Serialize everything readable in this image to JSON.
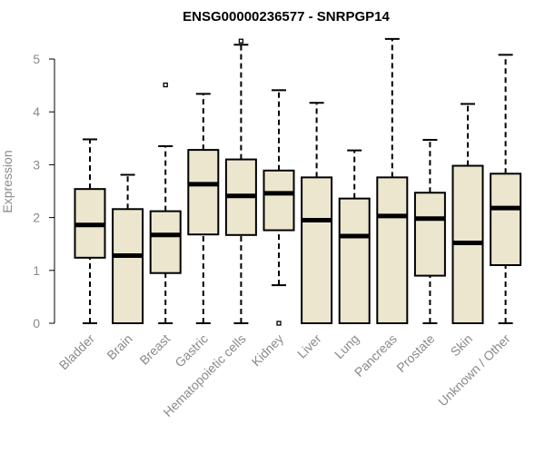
{
  "chart_data": {
    "type": "boxplot",
    "title": "ENSG00000236577 - SNRPGP14",
    "xlabel": "",
    "ylabel": "Expression",
    "ylim": [
      0,
      5.4
    ],
    "yticks": [
      0,
      1,
      2,
      3,
      4,
      5
    ],
    "box_color": "#ede6cf",
    "categories": [
      "Bladder",
      "Brain",
      "Breast",
      "Gastric",
      "Hematopoietic cells",
      "Kidney",
      "Liver",
      "Lung",
      "Pancreas",
      "Prostate",
      "Skin",
      "Unknown / Other"
    ],
    "series": [
      {
        "name": "Bladder",
        "min": 0,
        "q1": 1.24,
        "median": 1.86,
        "q3": 2.54,
        "max": 3.48,
        "outliers": []
      },
      {
        "name": "Brain",
        "min": 0,
        "q1": 0,
        "median": 1.28,
        "q3": 2.16,
        "max": 2.81,
        "outliers": []
      },
      {
        "name": "Breast",
        "min": 0,
        "q1": 0.95,
        "median": 1.67,
        "q3": 2.12,
        "max": 3.35,
        "outliers": [
          4.51
        ]
      },
      {
        "name": "Gastric",
        "min": 0,
        "q1": 1.68,
        "median": 2.63,
        "q3": 3.28,
        "max": 4.34,
        "outliers": []
      },
      {
        "name": "Hematopoietic cells",
        "min": 0,
        "q1": 1.67,
        "median": 2.41,
        "q3": 3.1,
        "max": 5.27,
        "outliers": [
          5.34
        ]
      },
      {
        "name": "Kidney",
        "min": 0.72,
        "q1": 1.76,
        "median": 2.46,
        "q3": 2.89,
        "max": 4.41,
        "outliers": [
          0
        ]
      },
      {
        "name": "Liver",
        "min": 0,
        "q1": 0,
        "median": 1.95,
        "q3": 2.76,
        "max": 4.17,
        "outliers": []
      },
      {
        "name": "Lung",
        "min": 0,
        "q1": 0,
        "median": 1.65,
        "q3": 2.36,
        "max": 3.27,
        "outliers": []
      },
      {
        "name": "Pancreas",
        "min": 0,
        "q1": 0,
        "median": 2.03,
        "q3": 2.76,
        "max": 5.38,
        "outliers": []
      },
      {
        "name": "Prostate",
        "min": 0,
        "q1": 0.9,
        "median": 1.98,
        "q3": 2.47,
        "max": 3.47,
        "outliers": []
      },
      {
        "name": "Skin",
        "min": 0,
        "q1": 0,
        "median": 1.52,
        "q3": 2.98,
        "max": 4.15,
        "outliers": []
      },
      {
        "name": "Unknown / Other",
        "min": 0,
        "q1": 1.1,
        "median": 2.18,
        "q3": 2.83,
        "max": 5.08,
        "outliers": []
      }
    ]
  }
}
